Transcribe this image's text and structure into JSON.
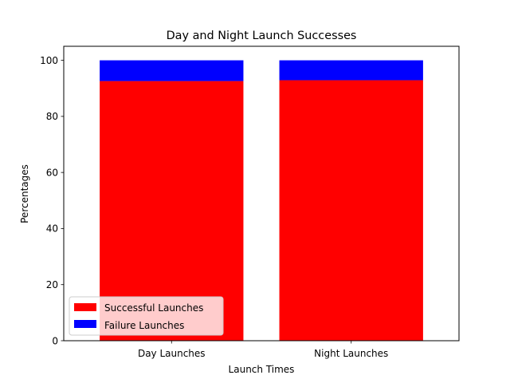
{
  "chart_data": {
    "type": "bar",
    "stacked": true,
    "title": "Day and Night Launch Successes",
    "xlabel": "Launch Times",
    "ylabel": "Percentages",
    "categories": [
      "Day Launches",
      "Night Launches"
    ],
    "series": [
      {
        "name": "Successful Launches",
        "color": "#ff0000",
        "values": [
          92.6,
          92.9
        ]
      },
      {
        "name": "Failure Launches",
        "color": "#0000ff",
        "values": [
          7.4,
          7.1
        ]
      }
    ],
    "ylim": [
      0,
      105
    ],
    "yticks": [
      0,
      20,
      40,
      60,
      80,
      100
    ],
    "grid": false,
    "legend": "lower-left"
  }
}
